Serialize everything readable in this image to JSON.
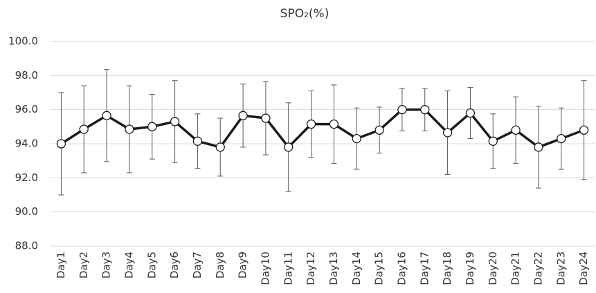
{
  "chart_data": {
    "type": "line",
    "title": "SPO₂(%)",
    "categories": [
      "Day1",
      "Day2",
      "Day3",
      "Day4",
      "Day5",
      "Day6",
      "Day7",
      "Day8",
      "Day9",
      "Day10",
      "Day11",
      "Day12",
      "Day13",
      "Day14",
      "Day15",
      "Day16",
      "Day17",
      "Day18",
      "Day19",
      "Day20",
      "Day21",
      "Day22",
      "Day23",
      "Day24"
    ],
    "values": [
      94.0,
      94.85,
      95.65,
      94.85,
      95.0,
      95.3,
      94.15,
      93.8,
      95.65,
      95.5,
      93.8,
      95.15,
      95.15,
      94.3,
      94.8,
      96.0,
      96.0,
      94.65,
      95.8,
      94.15,
      94.8,
      93.8,
      94.3,
      94.8
    ],
    "errors": [
      3.0,
      2.55,
      2.7,
      2.55,
      1.9,
      2.4,
      1.6,
      1.7,
      1.85,
      2.15,
      2.6,
      1.95,
      2.3,
      1.8,
      1.35,
      1.25,
      1.25,
      2.45,
      1.5,
      1.6,
      1.95,
      2.4,
      1.8,
      2.9
    ],
    "color": "#1a1a1a",
    "ylim": [
      88,
      100
    ],
    "yticks": [
      {
        "value": 88,
        "label": "88.0"
      },
      {
        "value": 90,
        "label": "90.0"
      },
      {
        "value": 92,
        "label": "92.0"
      },
      {
        "value": 94,
        "label": "94.0"
      },
      {
        "value": 96,
        "label": "96.0"
      },
      {
        "value": 98,
        "label": "98.0"
      },
      {
        "value": 100,
        "label": "100.0"
      }
    ],
    "grid": true
  }
}
